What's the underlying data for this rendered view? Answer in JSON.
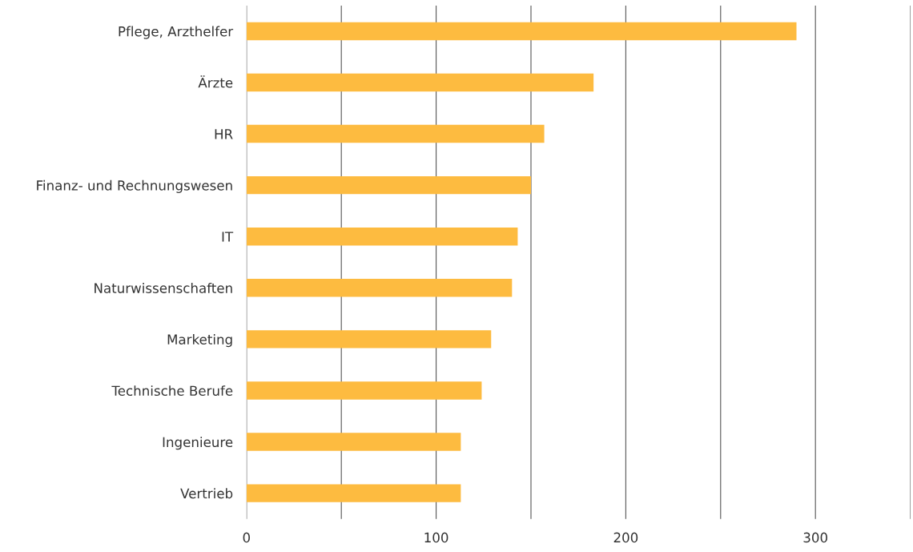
{
  "chart_data": {
    "type": "bar",
    "orientation": "horizontal",
    "categories": [
      "Pflege, Arzthelfer",
      "Ärzte",
      "HR",
      "Finanz- und Rechnungswesen",
      "IT",
      "Naturwissenschaften",
      "Marketing",
      "Technische Berufe",
      "Ingenieure",
      "Vertrieb"
    ],
    "values": [
      290,
      183,
      157,
      150,
      143,
      140,
      129,
      124,
      113,
      113
    ],
    "color": "#fdbb40",
    "xlim": [
      0,
      350
    ],
    "xticks": [
      0,
      {
        "value": 50,
        "label": null
      },
      100,
      {
        "value": 150,
        "label": null
      },
      200,
      {
        "value": 250,
        "label": null
      },
      300,
      {
        "value": 350,
        "label": null
      }
    ],
    "grid": "x"
  }
}
